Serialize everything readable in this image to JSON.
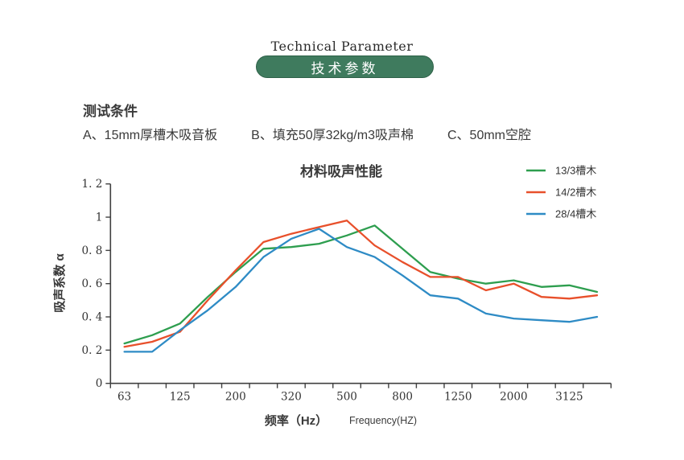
{
  "header": {
    "title_en": "Technical Parameter",
    "badge": "技术参数"
  },
  "conditions": {
    "heading": "测试条件",
    "items": [
      "A、15mm厚槽木吸音板",
      "B、填充50厚32kg/m3吸声棉",
      "C、50mm空腔"
    ]
  },
  "chart_data": {
    "type": "line",
    "title": "材料吸声性能",
    "xlabel": "频率（Hz）",
    "xlabel_en": "Frequency(HZ)",
    "ylabel": "吸声系数 α",
    "ylim": [
      0,
      1.2
    ],
    "grid": false,
    "legend_position": "top-right",
    "num_categories": 18,
    "x_tick_labels": [
      "63",
      "125",
      "200",
      "320",
      "500",
      "800",
      "1250",
      "2000",
      "3125"
    ],
    "labeled_category_indices": [
      0,
      2,
      4,
      6,
      8,
      10,
      12,
      14,
      16
    ],
    "y_ticks": [
      {
        "value": 0,
        "label": "0"
      },
      {
        "value": 0.2,
        "label": "0. 2"
      },
      {
        "value": 0.4,
        "label": "0. 4"
      },
      {
        "value": 0.6,
        "label": "0. 6"
      },
      {
        "value": 0.8,
        "label": "0. 8"
      },
      {
        "value": 1.0,
        "label": "1"
      },
      {
        "value": 1.2,
        "label": "1. 2"
      }
    ],
    "series": [
      {
        "name": "13/3槽木",
        "color": "#2e9e4f",
        "values": [
          0.24,
          0.29,
          0.36,
          0.52,
          0.67,
          0.81,
          0.82,
          0.84,
          0.89,
          0.95,
          0.81,
          0.67,
          0.63,
          0.6,
          0.62,
          0.58,
          0.59,
          0.55
        ]
      },
      {
        "name": "14/2槽木",
        "color": "#e8502b",
        "values": [
          0.22,
          0.25,
          0.31,
          0.5,
          0.68,
          0.85,
          0.9,
          0.94,
          0.98,
          0.83,
          0.73,
          0.64,
          0.64,
          0.56,
          0.6,
          0.52,
          0.51,
          0.53
        ]
      },
      {
        "name": "28/4槽木",
        "color": "#2e8bc5",
        "values": [
          0.19,
          0.19,
          0.32,
          0.44,
          0.58,
          0.76,
          0.87,
          0.93,
          0.82,
          0.76,
          0.65,
          0.53,
          0.51,
          0.42,
          0.39,
          0.38,
          0.37,
          0.4
        ]
      }
    ]
  },
  "colors": {
    "badge_bg": "#3f7b5e",
    "badge_border": "#2e6148",
    "axis": "#404040",
    "tick_text": "#333333"
  }
}
